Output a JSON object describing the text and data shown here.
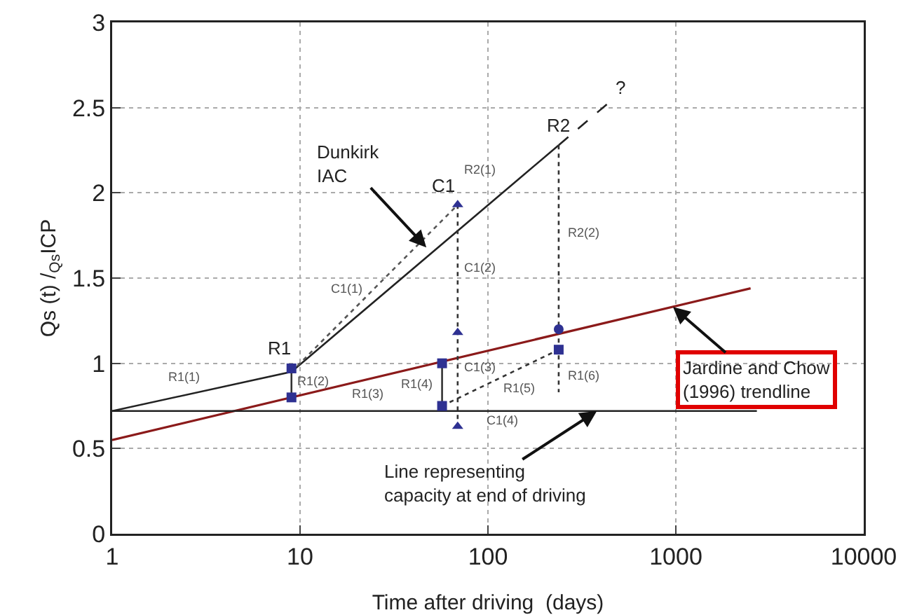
{
  "chart_data": {
    "type": "line",
    "xlabel": "Time after driving  (days)",
    "ylabel": "Qs (t) /$_{Qs}$ICP",
    "log": "x",
    "grid": true,
    "xlim": [
      1,
      10000
    ],
    "xticks": [
      1,
      10,
      100,
      1000,
      10000
    ],
    "ylim": [
      0,
      3
    ],
    "yticks": [
      0,
      0.5,
      1,
      1.5,
      2,
      2.5,
      3
    ],
    "series": [
      {
        "color": "#8b1a1a",
        "line_style": "solid",
        "x": [
          1,
          2500
        ],
        "values": [
          0.55,
          1.44
        ]
      },
      {
        "color": "#222222",
        "line_style": "solid",
        "x": [
          1,
          2700
        ],
        "values": [
          0.72,
          0.72
        ]
      },
      {
        "color": "#222222",
        "line_style": "solid",
        "x": [
          1,
          9,
          238
        ],
        "values": [
          0.72,
          0.95,
          2.28
        ]
      },
      {
        "color": "#222222",
        "line_style": "dashed",
        "x": [
          238,
          430
        ],
        "values": [
          2.28,
          2.52
        ]
      },
      {
        "color": "#555555",
        "line_style": "dotted",
        "x": [
          9,
          69
        ],
        "values": [
          0.95,
          1.93
        ]
      },
      {
        "color": "#333333",
        "line_style": "dotted",
        "x": [
          69,
          69
        ],
        "values": [
          1.93,
          0.63
        ]
      },
      {
        "color": "#333333",
        "line_style": "dotted",
        "x": [
          238,
          238
        ],
        "values": [
          2.28,
          0.83
        ]
      },
      {
        "color": "#333333",
        "line_style": "dotted",
        "x": [
          57,
          238
        ],
        "values": [
          0.75,
          1.08
        ]
      },
      {
        "color": "#333333",
        "line_style": "solid",
        "x": [
          9,
          9
        ],
        "values": [
          0.97,
          0.8
        ]
      },
      {
        "color": "#333333",
        "line_style": "solid",
        "x": [
          57,
          57
        ],
        "values": [
          1.0,
          0.75
        ]
      },
      {
        "type": "scatter",
        "color": "#2e3192",
        "marker": "square",
        "x": [
          9,
          9,
          57,
          57,
          238
        ],
        "values": [
          0.97,
          0.8,
          1.0,
          0.75,
          1.08
        ]
      },
      {
        "type": "scatter",
        "color": "#2e3192",
        "marker": "triangle",
        "x": [
          69,
          69,
          69
        ],
        "values": [
          1.93,
          1.18,
          0.63
        ]
      },
      {
        "type": "scatter",
        "color": "#2e3192",
        "marker": "circle",
        "x": [
          238
        ],
        "values": [
          1.2
        ]
      }
    ],
    "annotations": [
      {
        "text": "R1",
        "x": 9,
        "y": 0.97
      },
      {
        "text": "C1",
        "x": 69,
        "y": 1.93
      },
      {
        "text": "R2",
        "x": 238,
        "y": 2.28
      },
      {
        "text": "?",
        "x": 430,
        "y": 2.52
      },
      {
        "text": "Dunkirk\nIAC",
        "x": 47,
        "y": 1.68
      },
      {
        "text": "Line representing\ncapacity at end of driving",
        "x": 380,
        "y": 0.72
      },
      {
        "text": "Jardine and Chow\n(1996) trendline",
        "x": 966,
        "y": 1.33
      },
      {
        "text": "R1(1)",
        "x": 3,
        "y": 0.835
      },
      {
        "text": "C1(1)",
        "x": 25,
        "y": 1.44
      },
      {
        "text": "R2(1)",
        "x": 115,
        "y": 1.985
      },
      {
        "text": "C1(2)",
        "x": 69,
        "y": 1.56
      },
      {
        "text": "R2(2)",
        "x": 238,
        "y": 1.77
      },
      {
        "text": "R1(2)",
        "x": 9,
        "y": 0.9
      },
      {
        "text": "R1(3)",
        "x": 23,
        "y": 0.907
      },
      {
        "text": "R1(4)",
        "x": 57,
        "y": 0.88
      },
      {
        "text": "C1(3)",
        "x": 69,
        "y": 0.98
      },
      {
        "text": "R1(5)",
        "x": 148,
        "y": 0.97
      },
      {
        "text": "R1(6)",
        "x": 238,
        "y": 0.93
      },
      {
        "text": "C1(4)",
        "x": 69,
        "y": 0.63
      }
    ]
  }
}
